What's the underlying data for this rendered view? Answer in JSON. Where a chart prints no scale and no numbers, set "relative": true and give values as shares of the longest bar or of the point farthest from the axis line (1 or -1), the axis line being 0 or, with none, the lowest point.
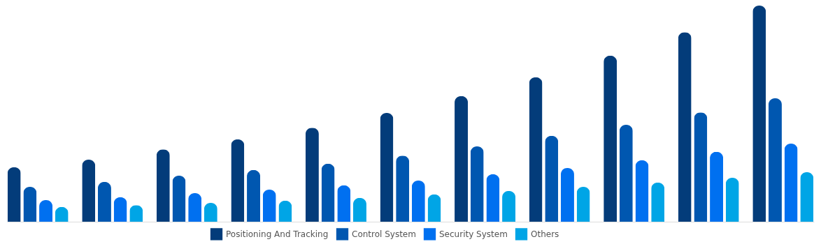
{
  "chart_data": {
    "type": "bar",
    "relative": true,
    "tick_labels": false,
    "legend": "bottom",
    "categories": [
      null,
      null,
      null,
      null,
      null,
      null,
      null,
      null,
      null,
      null,
      null
    ],
    "series": [
      {
        "name": "Positioning And Tracking",
        "color": "#033c7a",
        "values": [
          0.252,
          0.287,
          0.335,
          0.381,
          0.435,
          0.503,
          0.581,
          0.668,
          0.768,
          0.877,
          1
        ]
      },
      {
        "name": "Control System",
        "color": "#0057b0",
        "values": [
          0.161,
          0.184,
          0.213,
          0.239,
          0.268,
          0.306,
          0.348,
          0.397,
          0.448,
          0.506,
          0.571
        ]
      },
      {
        "name": "Security System",
        "color": "#0070f0",
        "values": [
          0.1,
          0.113,
          0.132,
          0.148,
          0.168,
          0.19,
          0.219,
          0.248,
          0.284,
          0.323,
          0.361
        ]
      },
      {
        "name": "Others",
        "color": "#00a5e6",
        "values": [
          0.068,
          0.077,
          0.087,
          0.097,
          0.11,
          0.126,
          0.142,
          0.161,
          0.181,
          0.203,
          0.229
        ]
      }
    ]
  }
}
